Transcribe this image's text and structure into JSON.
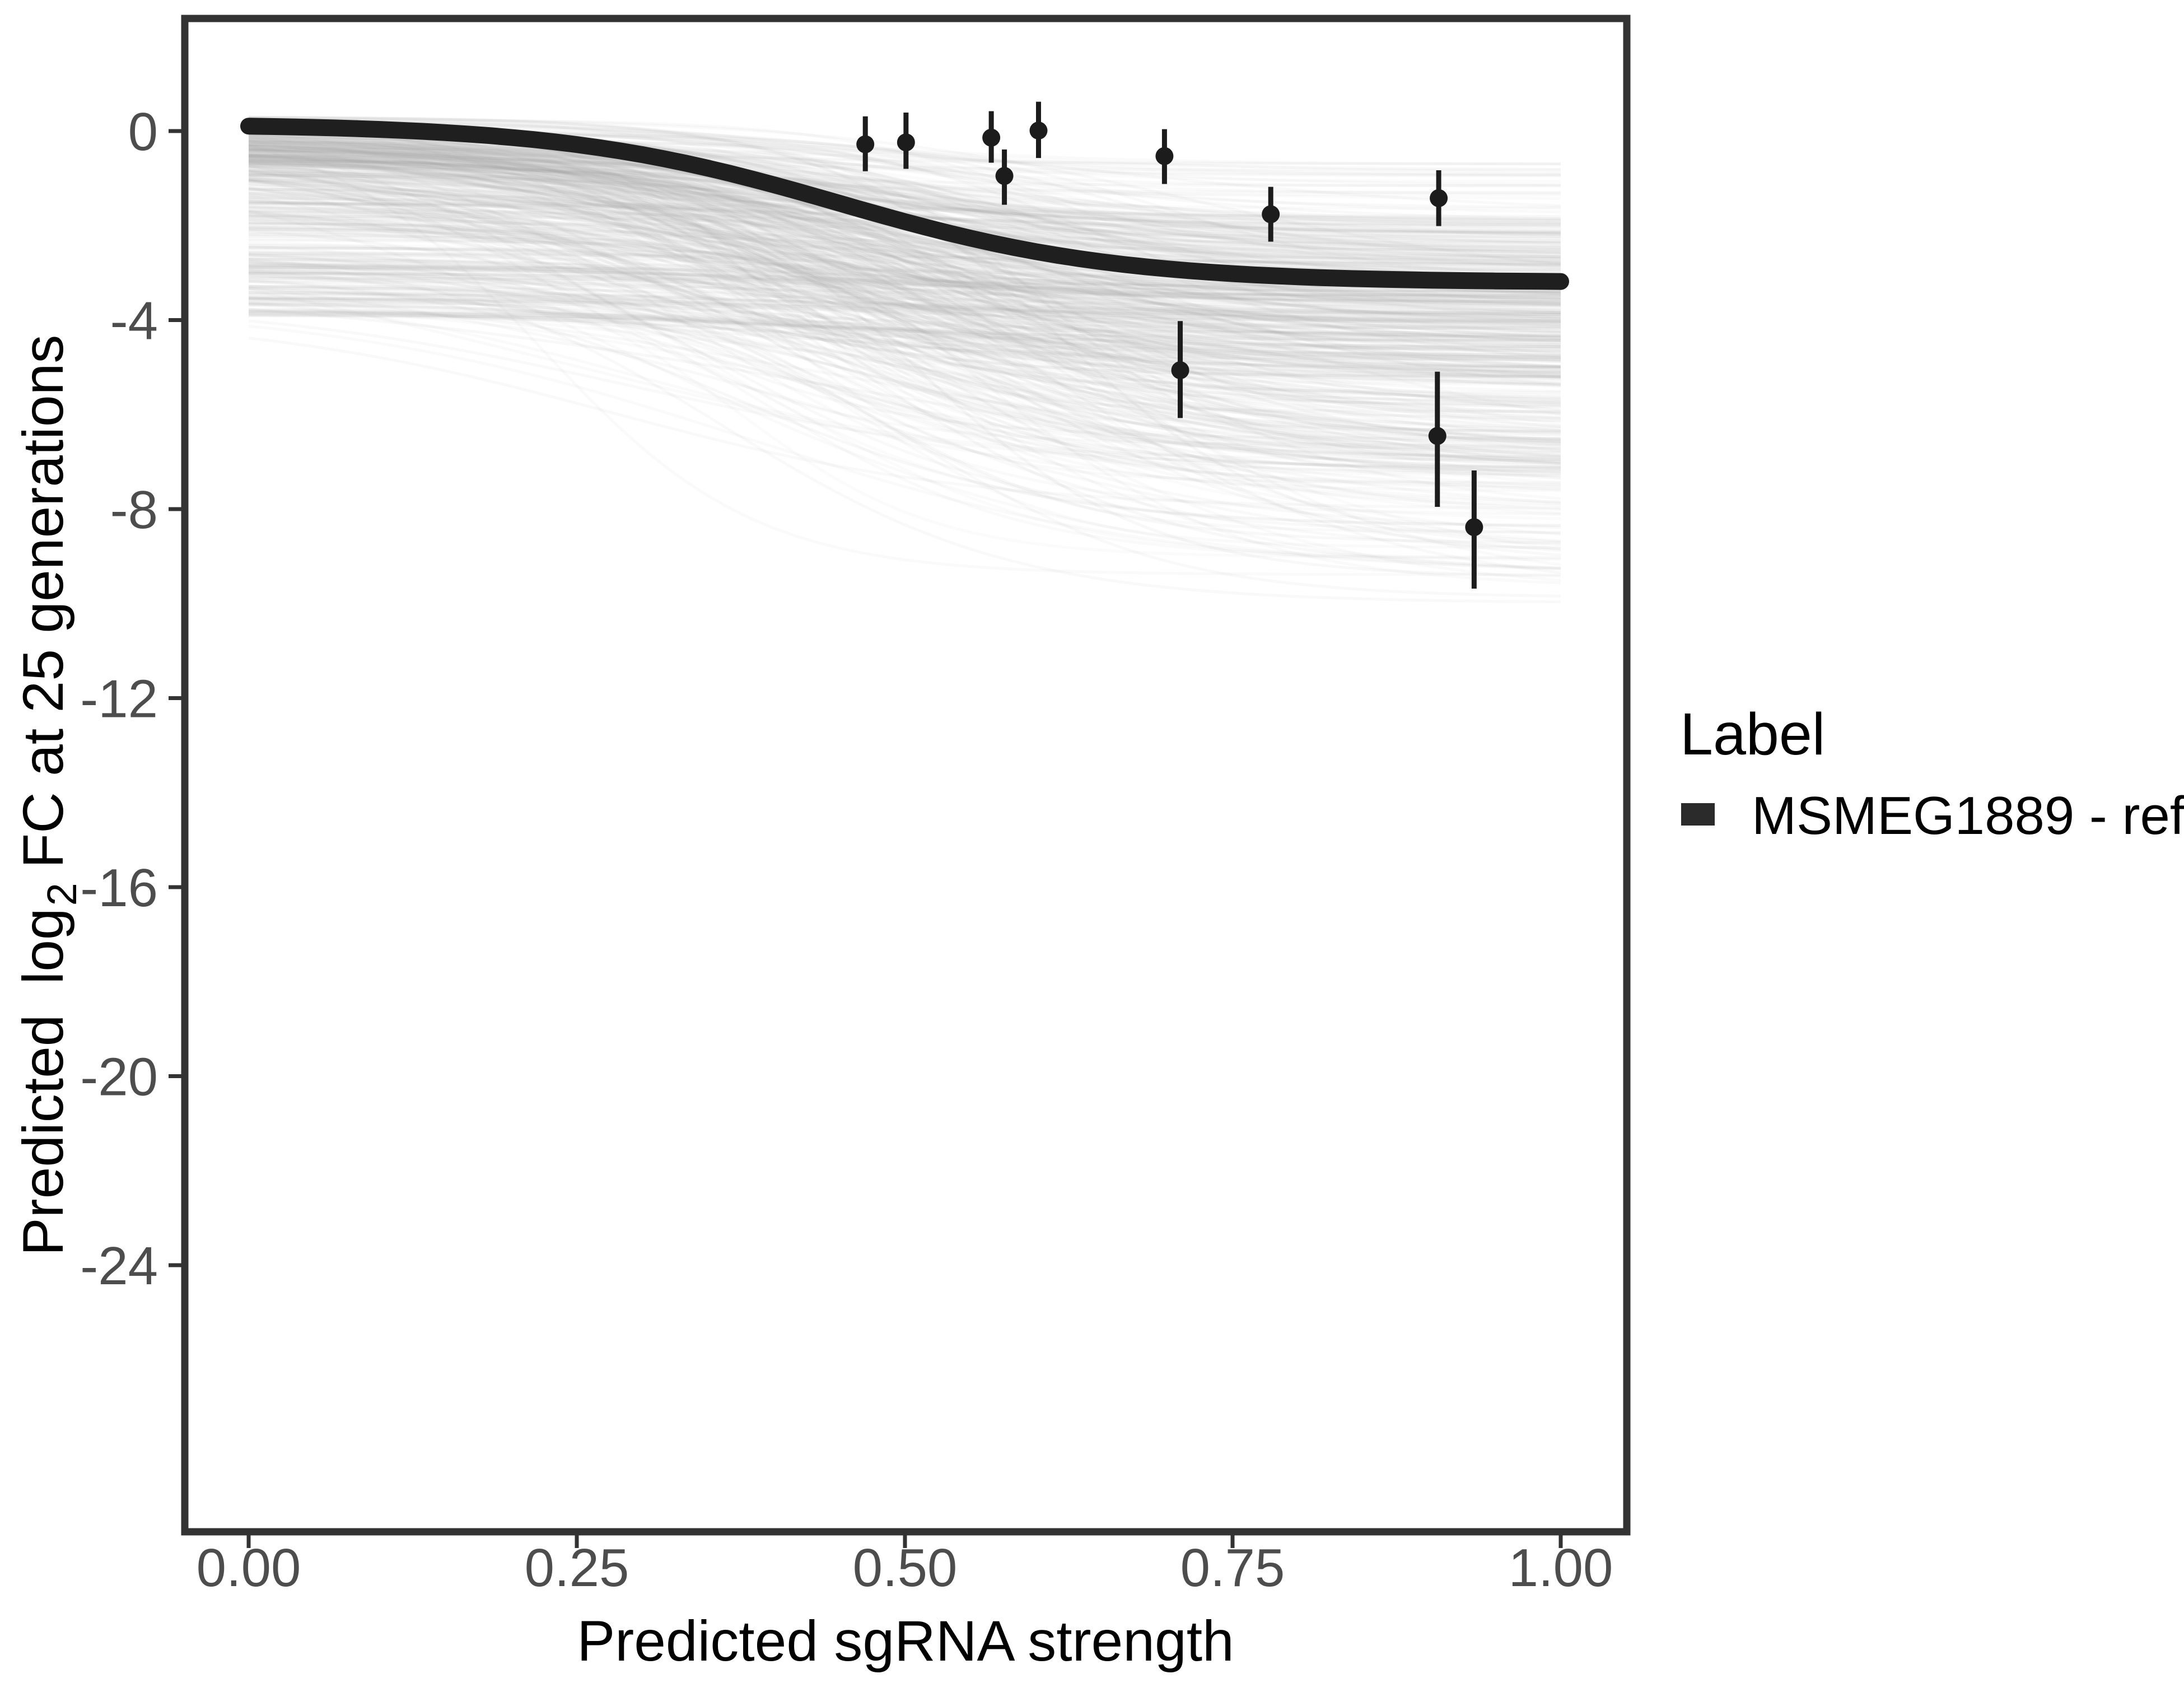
{
  "chart_data": {
    "type": "line",
    "title": "",
    "xlabel": "Predicted sgRNA strength",
    "ylabel": "Predicted log2 FC at 25 generations",
    "ylabel_parts": {
      "p0": "Predicted",
      "p1": "log",
      "sub": "2",
      "p2": "FC at 25 generations"
    },
    "x_ticks": [
      0,
      0.25,
      0.5,
      0.75,
      1.0
    ],
    "x_tick_labels": [
      "0.00",
      "0.25",
      "0.50",
      "0.75",
      "1.00"
    ],
    "y_ticks": [
      0,
      -4,
      -8,
      -12,
      -16,
      -20,
      -24
    ],
    "y_tick_labels": [
      "0",
      "-4",
      "-8",
      "-12",
      "-16",
      "-20",
      "-24"
    ],
    "xlim": [
      -0.04866,
      1.05036
    ],
    "ylim": [
      -29.63,
      2.381
    ],
    "grid": false,
    "legend_position": "right",
    "legend": {
      "title": "Label",
      "items": [
        {
          "label": "MSMEG1889 - ref",
          "swatch_color": "#2b2b2b"
        }
      ]
    },
    "reference_curve": {
      "label": "MSMEG1889 - ref",
      "color": "#1f1f1f",
      "stroke_width": 30,
      "sigmoid": {
        "start": 0.15,
        "depth": 3.35,
        "midpoint": 0.45,
        "steepness": 9.5
      }
    },
    "posterior_draws": {
      "count": 540,
      "seed": 42,
      "color": "#a8a8a8",
      "base_alpha": 0.045,
      "alpha_jitter": 0.035,
      "stroke_width": 5,
      "start_dist": {
        "p_main": 0.62,
        "main_mean": -0.3,
        "main_sd": 0.45,
        "main_min": -1.6,
        "main_max": 0.3,
        "p_mid": 0.25,
        "mid_min": -3.0,
        "mid_max": -1.2,
        "low_min": -3.9,
        "low_max": -2.8
      },
      "end_dist": {
        "p_main": 0.6,
        "main_mean": -3.0,
        "main_sd": 1.1,
        "main_min": -5.2,
        "main_max": -0.7,
        "p_mid": 0.25,
        "mid_min": -7.3,
        "mid_max": -4.5,
        "low_min": -10.0,
        "low_max": -6.5
      },
      "midpoint": {
        "mean": 0.46,
        "sd": 0.09,
        "min": 0.22,
        "max": 0.72
      },
      "steepness": {
        "mean": 8.5,
        "sd": 2.2,
        "min": 3.5,
        "max": 14
      }
    },
    "points": [
      {
        "x": 0.47,
        "y": -0.28,
        "ymin": -0.85,
        "ymax": 0.31
      },
      {
        "x": 0.501,
        "y": -0.24,
        "ymin": -0.8,
        "ymax": 0.39
      },
      {
        "x": 0.566,
        "y": -0.14,
        "ymin": -0.67,
        "ymax": 0.42
      },
      {
        "x": 0.576,
        "y": -0.95,
        "ymin": -1.56,
        "ymax": -0.39
      },
      {
        "x": 0.602,
        "y": 0.01,
        "ymin": -0.57,
        "ymax": 0.62
      },
      {
        "x": 0.698,
        "y": -0.53,
        "ymin": -1.12,
        "ymax": 0.04
      },
      {
        "x": 0.71,
        "y": -5.06,
        "ymin": -6.07,
        "ymax": -4.02
      },
      {
        "x": 0.779,
        "y": -1.76,
        "ymin": -2.34,
        "ymax": -1.18
      },
      {
        "x": 0.906,
        "y": -6.45,
        "ymin": -7.95,
        "ymax": -5.09
      },
      {
        "x": 0.907,
        "y": -1.42,
        "ymin": -2.01,
        "ymax": -0.83
      },
      {
        "x": 0.934,
        "y": -8.38,
        "ymin": -9.68,
        "ymax": -7.18
      }
    ],
    "point_style": {
      "color": "#1c1c1c",
      "radius": 16,
      "errorbar_width": 9
    }
  },
  "style": {
    "background": "#ffffff",
    "panel_border": "#333333",
    "tick_color": "#333333",
    "tick_label_color": "#4d4d4d",
    "axis_title_color": "#000000",
    "legend_text_color": "#000000"
  }
}
